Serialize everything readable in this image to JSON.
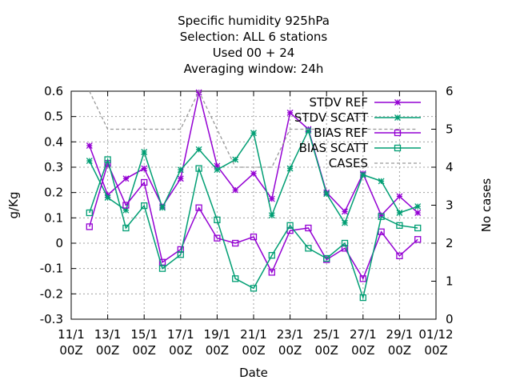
{
  "chart_data": {
    "type": "line",
    "title_lines": [
      "Specific humidity 925hPa",
      "Selection: ALL      6 stations",
      "Used  00 + 24",
      "Averaging window: 24h"
    ],
    "xlabel": "Date",
    "ylabel": "g/Kg",
    "y2label": "No cases",
    "ylim": [
      -0.3,
      0.6
    ],
    "yticks": [
      "-0.3",
      "-0.2",
      "-0.1",
      "0",
      "0.1",
      "0.2",
      "0.3",
      "0.4",
      "0.5",
      "0.6"
    ],
    "y2lim": [
      0,
      6
    ],
    "y2ticks": [
      "0",
      "1",
      "2",
      "3",
      "4",
      "5",
      "6"
    ],
    "xticks": [
      {
        "top": "11/1",
        "bottom": "00Z"
      },
      {
        "top": "13/1",
        "bottom": "00Z"
      },
      {
        "top": "15/1",
        "bottom": "00Z"
      },
      {
        "top": "17/1",
        "bottom": "00Z"
      },
      {
        "top": "19/1",
        "bottom": "00Z"
      },
      {
        "top": "21/1",
        "bottom": "00Z"
      },
      {
        "top": "23/1",
        "bottom": "00Z"
      },
      {
        "top": "25/1",
        "bottom": "00Z"
      },
      {
        "top": "27/1",
        "bottom": "00Z"
      },
      {
        "top": "29/1",
        "bottom": "00Z"
      },
      {
        "top": "01/12",
        "bottom": "00Z"
      }
    ],
    "x_dates": [
      "11/1",
      "12/1",
      "13/1",
      "14/1",
      "15/1",
      "16/1",
      "17/1",
      "18/1",
      "19/1",
      "20/1",
      "21/1",
      "22/1",
      "23/1",
      "24/1",
      "25/1",
      "26/1",
      "27/1",
      "28/1",
      "29/1",
      "30/1",
      "01/12"
    ],
    "grid": true,
    "legend_position": "top-right",
    "series": [
      {
        "name": "STDV REF",
        "axis": "y1",
        "color": "#9400d3",
        "marker": "star",
        "dash": false,
        "x": [
          "12/1",
          "13/1",
          "14/1",
          "15/1",
          "16/1",
          "17/1",
          "18/1",
          "19/1",
          "20/1",
          "21/1",
          "22/1",
          "23/1",
          "24/1",
          "25/1",
          "26/1",
          "27/1",
          "28/1",
          "29/1",
          "30/1"
        ],
        "values": [
          0.385,
          0.19,
          0.255,
          0.295,
          0.145,
          0.255,
          0.595,
          0.305,
          0.21,
          0.275,
          0.175,
          0.515,
          0.45,
          0.2,
          0.125,
          0.275,
          0.11,
          0.185,
          0.12
        ]
      },
      {
        "name": "STDV SCATT",
        "axis": "y1",
        "color": "#009e73",
        "marker": "star",
        "dash": false,
        "x": [
          "12/1",
          "13/1",
          "14/1",
          "15/1",
          "16/1",
          "17/1",
          "18/1",
          "19/1",
          "20/1",
          "21/1",
          "22/1",
          "23/1",
          "24/1",
          "25/1",
          "26/1",
          "27/1",
          "28/1",
          "29/1",
          "30/1"
        ],
        "values": [
          0.325,
          0.18,
          0.13,
          0.36,
          0.14,
          0.29,
          0.37,
          0.29,
          0.33,
          0.435,
          0.11,
          0.295,
          0.445,
          0.195,
          0.08,
          0.27,
          0.245,
          0.12,
          0.145
        ]
      },
      {
        "name": "BIAS REF",
        "axis": "y1",
        "color": "#9400d3",
        "marker": "square",
        "dash": false,
        "x": [
          "12/1",
          "13/1",
          "14/1",
          "15/1",
          "16/1",
          "17/1",
          "18/1",
          "19/1",
          "20/1",
          "21/1",
          "22/1",
          "23/1",
          "24/1",
          "25/1",
          "26/1",
          "27/1",
          "28/1",
          "29/1",
          "30/1"
        ],
        "values": [
          0.065,
          0.315,
          0.15,
          0.24,
          -0.075,
          -0.025,
          0.14,
          0.02,
          0.0,
          0.025,
          -0.115,
          0.05,
          0.06,
          -0.065,
          -0.02,
          -0.14,
          0.045,
          -0.05,
          0.015
        ]
      },
      {
        "name": "BIAS SCATT",
        "axis": "y1",
        "color": "#009e73",
        "marker": "square",
        "dash": false,
        "x": [
          "12/1",
          "13/1",
          "14/1",
          "15/1",
          "16/1",
          "17/1",
          "18/1",
          "19/1",
          "20/1",
          "21/1",
          "22/1",
          "23/1",
          "24/1",
          "25/1",
          "26/1",
          "27/1",
          "28/1",
          "29/1",
          "30/1"
        ],
        "values": [
          0.12,
          0.33,
          0.06,
          0.148,
          -0.1,
          -0.045,
          0.295,
          0.092,
          -0.14,
          -0.178,
          -0.048,
          0.07,
          -0.02,
          -0.06,
          0.0,
          -0.215,
          0.105,
          0.07,
          0.06
        ]
      },
      {
        "name": "CASES",
        "axis": "y2",
        "color": "#999999",
        "marker": "none",
        "dash": true,
        "x": [
          "12/1",
          "13/1",
          "14/1",
          "15/1",
          "16/1",
          "17/1",
          "18/1",
          "19/1",
          "20/1",
          "21/1",
          "22/1",
          "23/1",
          "24/1",
          "25/1",
          "26/1",
          "27/1",
          "28/1",
          "29/1",
          "30/1"
        ],
        "values": [
          6,
          5,
          5,
          5,
          5,
          5,
          6,
          5,
          4,
          4,
          4,
          5,
          5,
          5,
          5,
          5,
          5,
          5,
          5
        ]
      }
    ]
  }
}
